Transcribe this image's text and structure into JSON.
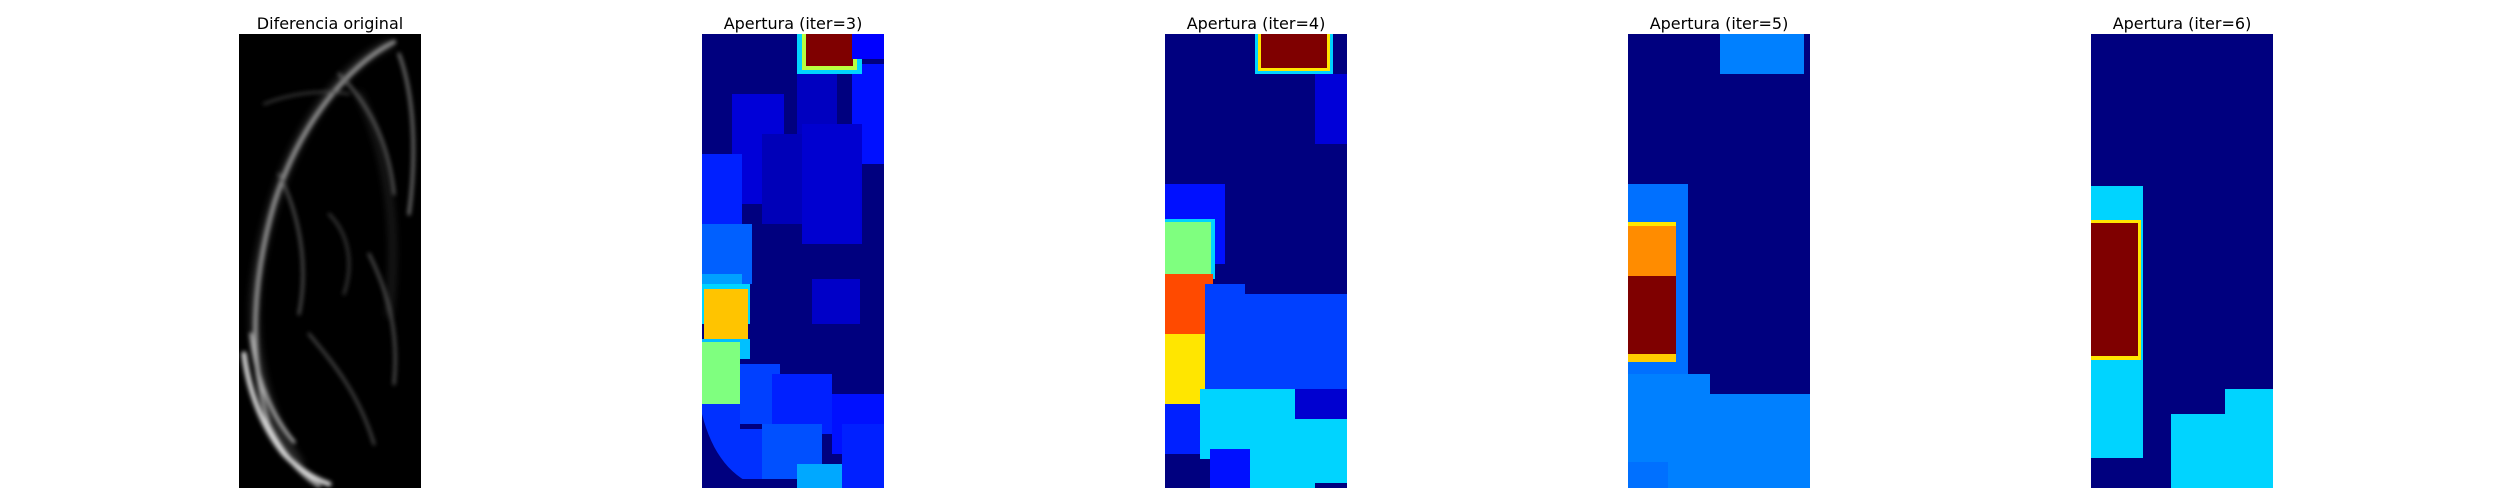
{
  "panels": [
    {
      "title": "Diferencia original",
      "colormap": "gray"
    },
    {
      "title": "Apertura (iter=3)",
      "colormap": "jet"
    },
    {
      "title": "Apertura (iter=4)",
      "colormap": "jet"
    },
    {
      "title": "Apertura (iter=5)",
      "colormap": "jet"
    },
    {
      "title": "Apertura (iter=6)",
      "colormap": "jet"
    }
  ],
  "colors": {
    "background": "#ffffff",
    "jet_dark_blue": "#00007f",
    "jet_blue": "#0000ff",
    "jet_mid_blue": "#0080ff",
    "jet_cyan": "#00d4ff",
    "jet_green": "#7fff7f",
    "jet_yellow": "#ffe600",
    "jet_orange": "#ff8c00",
    "jet_red": "#ff4a00",
    "jet_dark_red": "#7f0000",
    "gray_black": "#000000"
  }
}
